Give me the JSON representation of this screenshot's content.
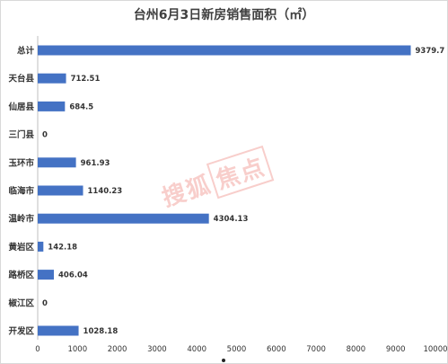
{
  "chart_data": {
    "type": "bar",
    "orientation": "horizontal",
    "title": "台州6月3日新房销售面积（㎡）",
    "categories": [
      "总计",
      "天台县",
      "仙居县",
      "三门县",
      "玉环市",
      "临海市",
      "温岭市",
      "黄岩区",
      "路桥区",
      "椒江区",
      "开发区"
    ],
    "values": [
      9379.7,
      712.51,
      684.5,
      0,
      961.93,
      1140.23,
      4304.13,
      142.18,
      406.04,
      0,
      1028.18
    ],
    "value_labels": [
      "9379.7",
      "712.51",
      "684.5",
      "0",
      "961.93",
      "1140.23",
      "4304.13",
      "142.18",
      "406.04",
      "0",
      "1028.18"
    ],
    "xlim": [
      0,
      10000
    ],
    "x_ticks": [
      "0",
      "1000",
      "2000",
      "3000",
      "4000",
      "5000",
      "6000",
      "7000",
      "8000",
      "9000",
      "10000"
    ],
    "xlabel": "",
    "ylabel": "",
    "grid": false,
    "legend": "none",
    "bar_color": "#4472c4"
  },
  "watermark": {
    "text": "搜狐",
    "boxed_text": "焦点"
  }
}
